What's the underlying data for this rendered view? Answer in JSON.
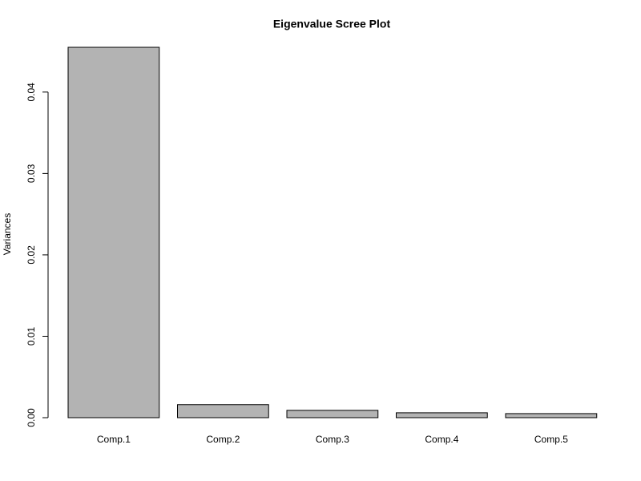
{
  "chart_data": {
    "type": "bar",
    "title": "Eigenvalue Scree Plot",
    "y_label": "Variances",
    "categories": [
      "Comp.1",
      "Comp.2",
      "Comp.3",
      "Comp.4",
      "Comp.5"
    ],
    "values": [
      0.0455,
      0.0016,
      0.0009,
      0.0006,
      0.0005
    ],
    "color": "#b3b3b3",
    "ylim": [
      0,
      0.0455
    ],
    "yticks": [
      {
        "value": 0,
        "label": "0.00"
      },
      0.01,
      0.02,
      0.03,
      0.04
    ],
    "grid": false
  }
}
